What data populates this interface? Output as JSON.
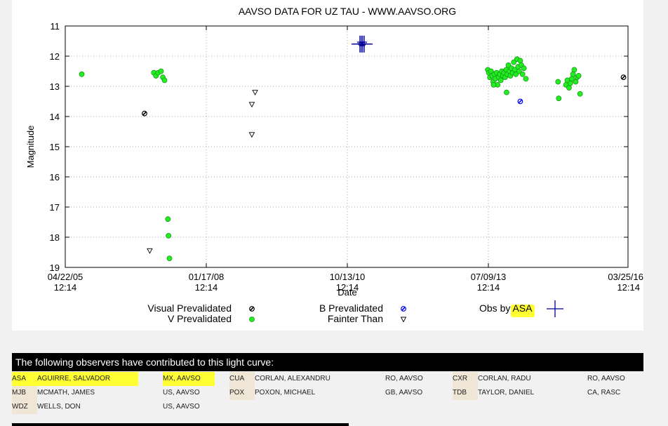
{
  "chart_data": {
    "type": "scatter",
    "title": "AAVSO DATA FOR UZ TAU - WWW.AAVSO.ORG",
    "xlabel": "Date",
    "ylabel": "Magnitude",
    "x_type": "date",
    "xlim": [
      "2005-04-22",
      "2016-03-25"
    ],
    "ylim": [
      19,
      11
    ],
    "y_inverted": true,
    "y_ticks": [
      "11",
      "12",
      "13",
      "14",
      "15",
      "16",
      "17",
      "18",
      "19"
    ],
    "x_ticks": [
      {
        "date": "2005-04-22",
        "label1": "04/22/05",
        "label2": "12:14"
      },
      {
        "date": "2008-01-17",
        "label1": "01/17/08",
        "label2": "12:14"
      },
      {
        "date": "2010-10-13",
        "label1": "10/13/10",
        "label2": "12:14"
      },
      {
        "date": "2013-07-09",
        "label1": "07/09/13",
        "label2": "12:14"
      },
      {
        "date": "2016-03-25",
        "label1": "03/25/16",
        "label2": "12:14"
      }
    ],
    "grid": true,
    "series": [
      {
        "name": "Visual Prevalidated",
        "marker": "circle-x",
        "color": "#000000",
        "points": [
          {
            "x": "2006-11-05",
            "y": 13.9
          },
          {
            "x": "2016-02-22",
            "y": 12.7
          }
        ]
      },
      {
        "name": "V Prevalidated",
        "marker": "circle",
        "color": "#22ee22",
        "points": [
          {
            "x": "2005-08-17",
            "y": 12.6
          },
          {
            "x": "2007-01-10",
            "y": 12.55
          },
          {
            "x": "2007-01-25",
            "y": 12.65
          },
          {
            "x": "2007-02-10",
            "y": 12.55
          },
          {
            "x": "2007-03-02",
            "y": 12.5
          },
          {
            "x": "2007-03-15",
            "y": 12.7
          },
          {
            "x": "2007-03-27",
            "y": 12.8
          },
          {
            "x": "2007-04-20",
            "y": 17.4
          },
          {
            "x": "2007-04-24",
            "y": 17.95
          },
          {
            "x": "2007-05-01",
            "y": 18.7
          },
          {
            "x": "2013-07-05",
            "y": 12.45
          },
          {
            "x": "2013-07-12",
            "y": 12.55
          },
          {
            "x": "2013-07-20",
            "y": 12.7
          },
          {
            "x": "2013-07-28",
            "y": 12.5
          },
          {
            "x": "2013-08-05",
            "y": 12.65
          },
          {
            "x": "2013-08-12",
            "y": 12.85
          },
          {
            "x": "2013-08-20",
            "y": 12.6
          },
          {
            "x": "2013-08-28",
            "y": 12.75
          },
          {
            "x": "2013-09-05",
            "y": 12.55
          },
          {
            "x": "2013-09-12",
            "y": 12.95
          },
          {
            "x": "2013-09-20",
            "y": 12.7
          },
          {
            "x": "2013-09-28",
            "y": 12.6
          },
          {
            "x": "2013-10-05",
            "y": 12.8
          },
          {
            "x": "2013-10-12",
            "y": 12.5
          },
          {
            "x": "2013-10-20",
            "y": 12.65
          },
          {
            "x": "2013-10-28",
            "y": 12.55
          },
          {
            "x": "2013-11-05",
            "y": 12.7
          },
          {
            "x": "2013-11-12",
            "y": 12.45
          },
          {
            "x": "2013-11-20",
            "y": 12.6
          },
          {
            "x": "2013-11-28",
            "y": 12.3
          },
          {
            "x": "2013-12-05",
            "y": 12.5
          },
          {
            "x": "2013-12-12",
            "y": 12.65
          },
          {
            "x": "2013-12-20",
            "y": 12.4
          },
          {
            "x": "2013-12-28",
            "y": 12.55
          },
          {
            "x": "2014-01-05",
            "y": 12.2
          },
          {
            "x": "2014-01-12",
            "y": 12.45
          },
          {
            "x": "2014-01-20",
            "y": 12.6
          },
          {
            "x": "2014-01-28",
            "y": 12.1
          },
          {
            "x": "2014-02-05",
            "y": 12.35
          },
          {
            "x": "2014-02-12",
            "y": 12.5
          },
          {
            "x": "2014-02-20",
            "y": 12.15
          },
          {
            "x": "2014-02-28",
            "y": 12.3
          },
          {
            "x": "2014-03-08",
            "y": 12.6
          },
          {
            "x": "2014-03-18",
            "y": 12.4
          },
          {
            "x": "2014-04-01",
            "y": 12.75
          },
          {
            "x": "2013-11-15",
            "y": 13.2
          },
          {
            "x": "2013-08-15",
            "y": 12.95
          },
          {
            "x": "2014-11-15",
            "y": 12.85
          },
          {
            "x": "2014-11-20",
            "y": 13.4
          },
          {
            "x": "2015-01-10",
            "y": 12.95
          },
          {
            "x": "2015-01-20",
            "y": 12.8
          },
          {
            "x": "2015-02-01",
            "y": 13.05
          },
          {
            "x": "2015-02-10",
            "y": 12.9
          },
          {
            "x": "2015-02-20",
            "y": 12.75
          },
          {
            "x": "2015-03-01",
            "y": 12.6
          },
          {
            "x": "2015-03-10",
            "y": 12.45
          },
          {
            "x": "2015-03-20",
            "y": 12.85
          },
          {
            "x": "2015-03-30",
            "y": 12.7
          },
          {
            "x": "2015-04-10",
            "y": 12.65
          },
          {
            "x": "2015-04-20",
            "y": 13.25
          }
        ]
      },
      {
        "name": "B Prevalidated",
        "marker": "circle-x",
        "color": "#0000ff",
        "points": [
          {
            "x": "2014-02-20",
            "y": 13.5
          }
        ]
      },
      {
        "name": "Fainter Than",
        "marker": "triangle-down",
        "color": "#000000",
        "points": [
          {
            "x": "2006-12-12",
            "y": 18.45
          },
          {
            "x": "2008-12-05",
            "y": 13.6
          },
          {
            "x": "2008-12-05",
            "y": 14.6
          },
          {
            "x": "2008-12-28",
            "y": 13.2
          }
        ]
      },
      {
        "name": "Obs by ASA",
        "marker": "cross",
        "color": "#000099",
        "points": [
          {
            "x": "2011-01-10",
            "y": 11.6
          },
          {
            "x": "2011-01-20",
            "y": 11.6
          },
          {
            "x": "2011-01-30",
            "y": 11.6
          },
          {
            "x": "2011-02-10",
            "y": 11.6
          }
        ]
      }
    ],
    "legend": [
      {
        "label": "Visual Prevalidated",
        "series": "Visual Prevalidated"
      },
      {
        "label": "V Prevalidated",
        "series": "V Prevalidated"
      },
      {
        "label": "B Prevalidated",
        "series": "B Prevalidated"
      },
      {
        "label": "Fainter Than",
        "series": "Fainter Than"
      },
      {
        "label": "Obs by ASA",
        "series": "Obs by ASA"
      }
    ],
    "legend_placement": "bottom"
  },
  "observers": {
    "header": "The following observers have contributed to this light curve:",
    "rows": [
      [
        {
          "code": "ASA",
          "name": "AGUIRRE, SALVADOR",
          "location": "MX, AAVSO",
          "highlight": true
        },
        {
          "code": "CUA",
          "name": "CORLAN, ALEXANDRU",
          "location": "RO, AAVSO",
          "highlight": false
        },
        {
          "code": "CXR",
          "name": "CORLAN, RADU",
          "location": "RO, AAVSO",
          "highlight": false
        }
      ],
      [
        {
          "code": "MJB",
          "name": "MCMATH, JAMES",
          "location": "US, AAVSO",
          "highlight": false
        },
        {
          "code": "POX",
          "name": "POXON, MICHAEL",
          "location": "GB, AAVSO",
          "highlight": false
        },
        {
          "code": "TDB",
          "name": "TAYLOR, DANIEL",
          "location": "CA, RASC",
          "highlight": false
        }
      ],
      [
        {
          "code": "WDZ",
          "name": "WELLS, DON",
          "location": "US, AAVSO",
          "highlight": false
        }
      ]
    ]
  },
  "colors": {
    "highlight": "#ffff33",
    "code_bg": "#efe6d6",
    "header_bg": "#000000"
  }
}
